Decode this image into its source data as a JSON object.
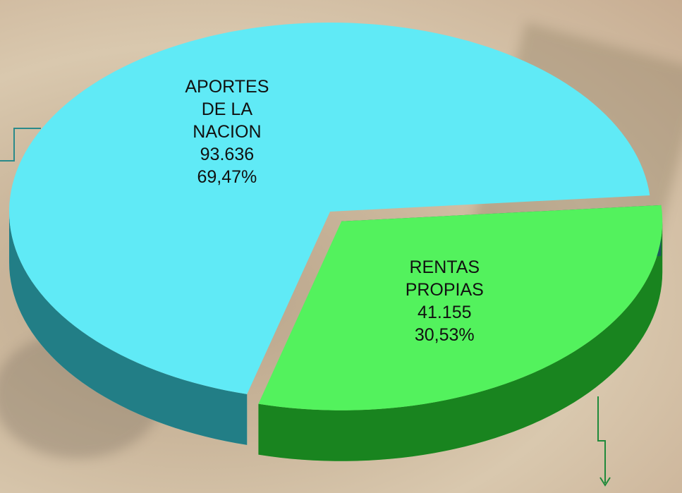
{
  "chart_data": {
    "type": "pie",
    "categories": [
      "APORTES DE LA NACION",
      "RENTAS PROPIAS"
    ],
    "values": [
      93636,
      41155
    ],
    "value_labels": [
      "93.636",
      "41.155"
    ],
    "percent_labels": [
      "69,47%",
      "30,53%"
    ],
    "colors": [
      "#3ee6f4",
      "#2ef03a"
    ],
    "explode": [
      false,
      true
    ]
  }
}
